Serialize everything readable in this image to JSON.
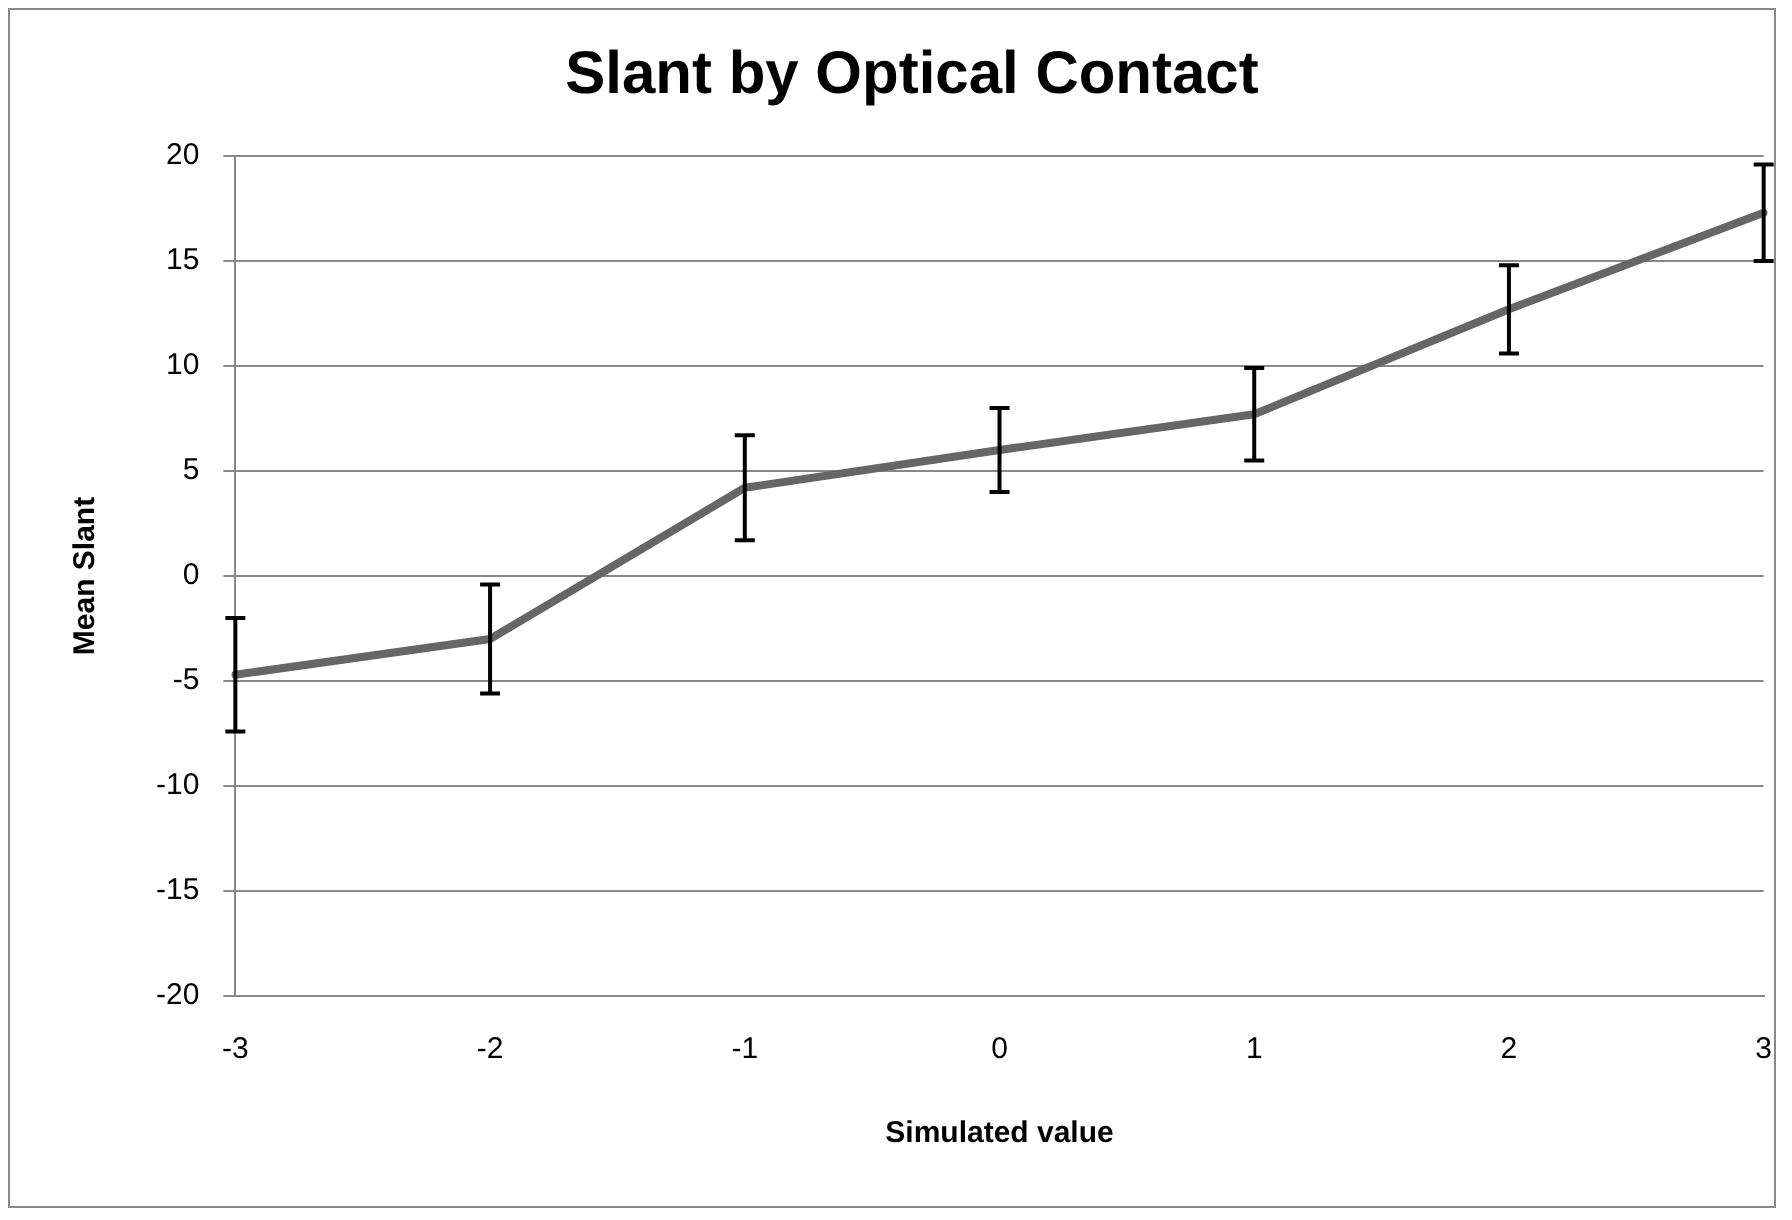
{
  "chart_data": {
    "type": "line",
    "title": "Slant by Optical Contact",
    "xlabel": "Simulated value",
    "ylabel": "Mean Slant",
    "categories": [
      "-3",
      "-2",
      "-1",
      "0",
      "1",
      "2",
      "3"
    ],
    "series": [
      {
        "color": "#666666",
        "values": [
          -4.7,
          -3.0,
          4.2,
          6.0,
          7.7,
          12.7,
          17.3
        ],
        "errors": [
          2.7,
          2.6,
          2.5,
          2.0,
          2.2,
          2.1,
          2.3
        ]
      }
    ],
    "ylim": [
      -20,
      20
    ],
    "yticks": [
      -20,
      -15,
      -10,
      -5,
      0,
      5,
      10,
      15,
      20
    ],
    "grid": "y",
    "legend": false,
    "marker": "none",
    "line_style": "solid"
  }
}
